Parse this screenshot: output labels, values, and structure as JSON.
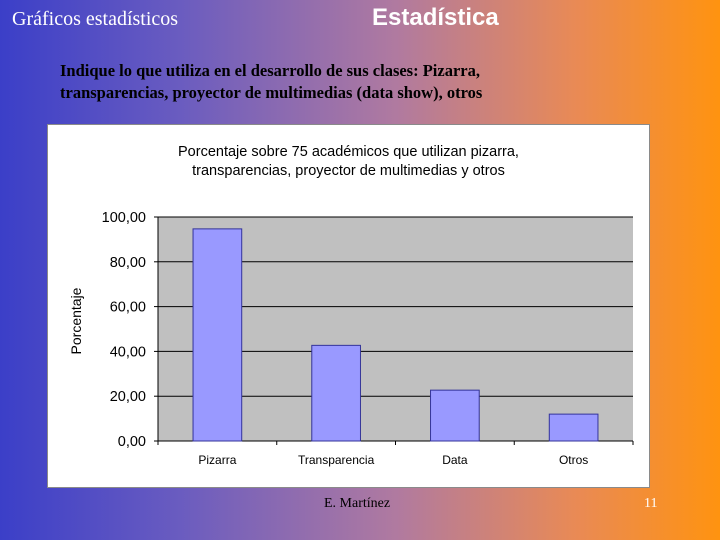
{
  "header": {
    "section_label": "Gráficos estadísticos",
    "title": "Estadística"
  },
  "question": {
    "line1": "Indique lo que utiliza en el desarrollo de sus clases: Pizarra,",
    "line2": "transparencias, proyector de multimedias (data show), otros"
  },
  "chart_data": {
    "type": "bar",
    "title_lines": [
      "Porcentaje sobre 75 académicos que utilizan pizarra,",
      "transparencias, proyector de multimedias y otros"
    ],
    "xlabel": "",
    "ylabel": "Porcentaje",
    "categories": [
      "Pizarra",
      "Transparencia",
      "Data",
      "Otros"
    ],
    "values": [
      94.7,
      42.7,
      22.7,
      12.0
    ],
    "ylim": [
      0,
      100
    ],
    "yticks": [
      "0,00",
      "20,00",
      "40,00",
      "60,00",
      "80,00",
      "100,00"
    ],
    "grid": true,
    "legend": "none",
    "colors": {
      "bar_fill": "#9999ff",
      "bar_stroke": "#333399",
      "plot_background": "#c0c0c0",
      "gridline": "#000000"
    }
  },
  "footer": {
    "author": "E. Martínez",
    "page_number": "11"
  }
}
